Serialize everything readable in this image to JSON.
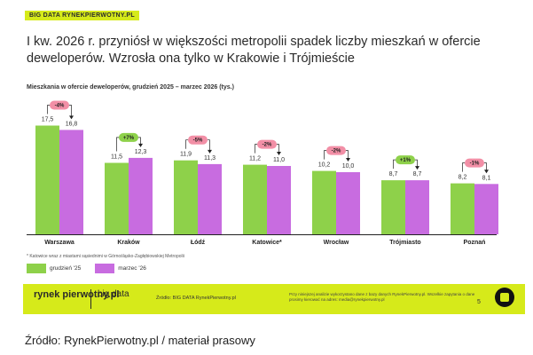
{
  "brand": "BIG DATA RYNEKPIERWOTNY.PL",
  "chart_data": {
    "type": "bar",
    "title": "I kw. 2026 r. przyniósł w większości metropolii spadek liczby mieszkań w ofercie deweloperów. Wzrosła ona tylko w Krakowie i Trójmieście",
    "subtitle": "Mieszkania w ofercie deweloperów, grudzień 2025 – marzec 2026 (tys.)",
    "categories": [
      "Warszawa",
      "Kraków",
      "Łódź",
      "Katowice*",
      "Wrocław",
      "Trójmiasto",
      "Poznań"
    ],
    "series": [
      {
        "name": "grudzień '25",
        "values": [
          17.5,
          11.5,
          11.9,
          11.2,
          10.2,
          8.7,
          8.2
        ],
        "labels": [
          "17,5",
          "11,5",
          "11,9",
          "11,2",
          "10,2",
          "8,7",
          "8,2"
        ]
      },
      {
        "name": "marzec '26",
        "values": [
          16.8,
          12.3,
          11.3,
          11.0,
          10.0,
          8.7,
          8.1
        ],
        "labels": [
          "16,8",
          "12,3",
          "11,3",
          "11,0",
          "10,0",
          "8,7",
          "8,1"
        ]
      }
    ],
    "changes": [
      "-4%",
      "+7%",
      "-5%",
      "-2%",
      "-2%",
      "+1%",
      "-1%"
    ],
    "ylim": [
      0,
      20
    ],
    "legend_position": "bottom-left",
    "grid": false
  },
  "colors": {
    "series1": "#8ed14a",
    "series2": "#c86ce0",
    "badge_down": "#f28fa6",
    "badge_up": "#8ed14a",
    "accent": "#d6ea1a"
  },
  "footnote": "* Katowice wraz z miastami sąsiednimi w Górnośląsko-Zagłębiowskiej Metropolii",
  "footer": {
    "logo_main": "rynek pierwotny.pl",
    "logo_sub": "big data",
    "source": "Źródło: BIG DATA RynekPierwotny.pl",
    "disclaimer": "Przy niniejszej analizie wykorzystano dane z bazy danych RynekPierwotny.pl. Wszelkie zapytania o dane prosimy kierować na adres: media@rynekpierwotny.pl",
    "page": "5"
  },
  "caption": "Źródło: RynekPierwotny.pl / materiał prasowy"
}
